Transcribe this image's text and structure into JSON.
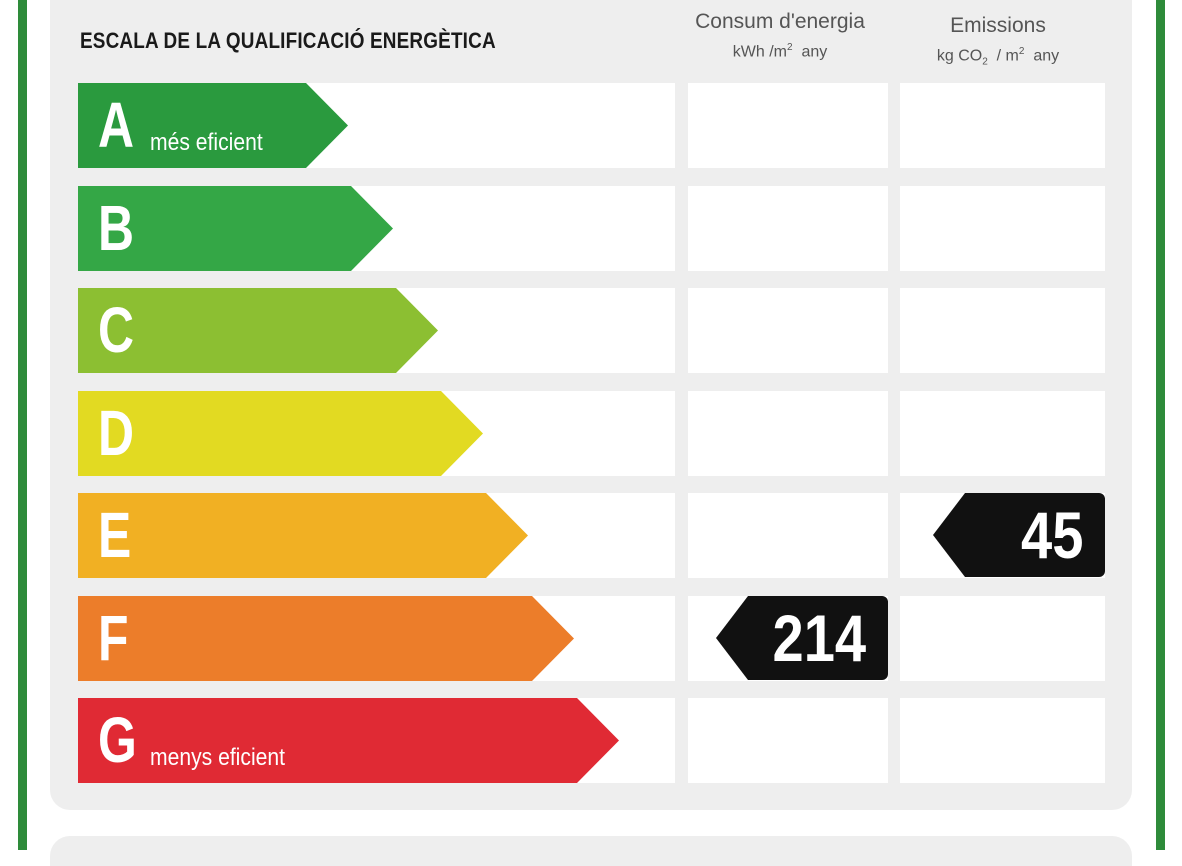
{
  "title": "ESCALA DE LA QUALIFICACIÓ ENERGÈTICA",
  "columns": {
    "energy": {
      "title": "Consum d'energia",
      "unit_main": "kWh /m",
      "unit_sup": "2",
      "unit_tail": "any"
    },
    "emissions": {
      "title": "Emissions",
      "unit_pre": "kg CO",
      "unit_sub": "2",
      "unit_mid": "/ m",
      "unit_sup": "2",
      "unit_tail": "any"
    }
  },
  "bands": [
    {
      "letter": "A",
      "label": "més eficient",
      "color": "#2a9a3e"
    },
    {
      "letter": "B",
      "label": "",
      "color": "#34a746"
    },
    {
      "letter": "C",
      "label": "",
      "color": "#8cbf32"
    },
    {
      "letter": "D",
      "label": "",
      "color": "#e2da22"
    },
    {
      "letter": "E",
      "label": "",
      "color": "#f1b023"
    },
    {
      "letter": "F",
      "label": "",
      "color": "#ec7d2a"
    },
    {
      "letter": "G",
      "label": "menys eficient",
      "color": "#e02a34"
    }
  ],
  "ratings": {
    "energy": {
      "value": "214",
      "band": "F"
    },
    "emissions": {
      "value": "45",
      "band": "E"
    }
  }
}
